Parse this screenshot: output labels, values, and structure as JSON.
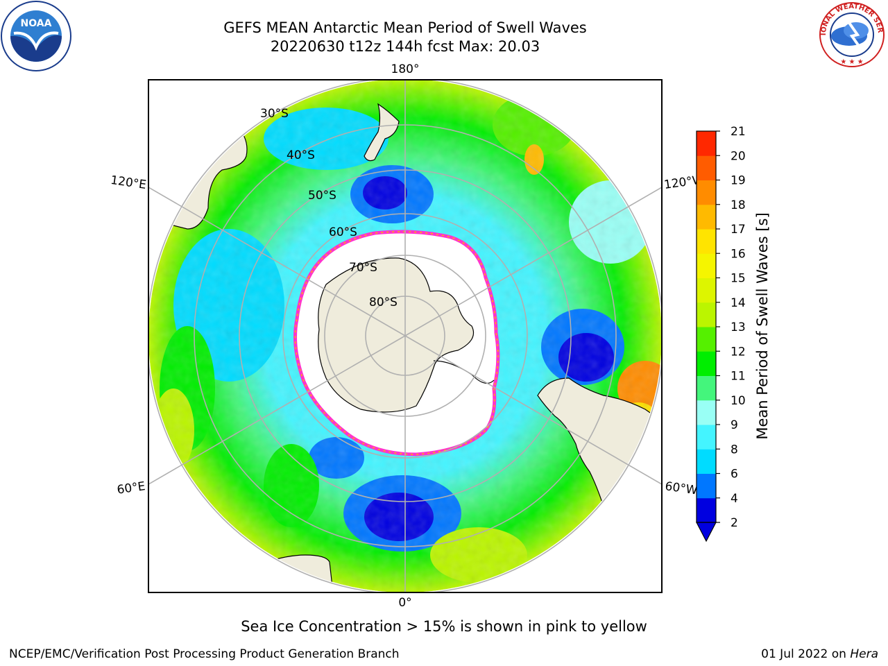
{
  "title": {
    "line1": "GEFS MEAN Antarctic Mean Period of Swell Waves",
    "line2": "20220630 t12z 144h fcst   Max: 20.03"
  },
  "map": {
    "projection": "south-polar-stereographic",
    "longitude_labels": {
      "top": "180°",
      "bottom": "0°",
      "upper_left": "120°E",
      "upper_right": "120°W",
      "lower_left": "60°E",
      "lower_right": "60°W"
    },
    "latitude_labels": [
      "30°S",
      "40°S",
      "50°S",
      "60°S",
      "70°S",
      "80°S"
    ],
    "colors": {
      "land": "#efecdc",
      "ice_white": "#ffffff",
      "ice_edge": "#ff33cc",
      "grid": "#b0b0b0"
    }
  },
  "colorbar": {
    "label": "Mean Period of Swell Waves [s]",
    "ticks": [
      "2",
      "4",
      "6",
      "8",
      "9",
      "10",
      "11",
      "12",
      "13",
      "14",
      "15",
      "16",
      "17",
      "18",
      "19",
      "20",
      "21"
    ],
    "colors": [
      "#0000e0",
      "#0077ff",
      "#00dcff",
      "#44f4ff",
      "#99fff5",
      "#44f57c",
      "#00ee00",
      "#55f000",
      "#bbf500",
      "#ddf500",
      "#f5f500",
      "#ffe400",
      "#ffba00",
      "#ff8c00",
      "#ff5c00",
      "#ff2800",
      "#ff0000"
    ],
    "underflow_color": "#0000e0"
  },
  "note": "Sea Ice Concentration > 15% is shown in pink to yellow",
  "footer": {
    "left": "NCEP/EMC/Verification Post Processing Product Generation Branch",
    "right_prefix": "01 Jul 2022 on ",
    "right_machine": "Hera"
  },
  "logos": {
    "left_text": "NOAA",
    "right_text": "NATIONAL WEATHER SERVICE"
  }
}
